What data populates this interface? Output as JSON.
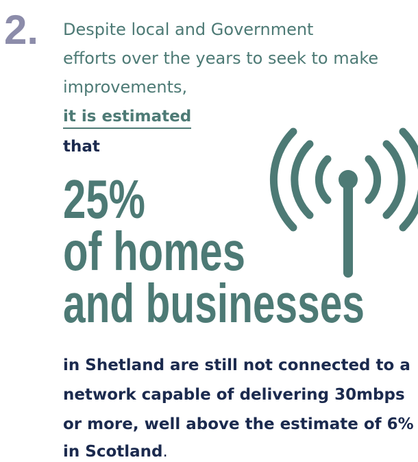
{
  "step_number": "2.",
  "intro_lines": [
    "Despite local and Government",
    "efforts over the years to seek to make",
    "improvements,"
  ],
  "link_text": "it is estimated",
  "connector": "that",
  "headline_lines": [
    "25%",
    "of homes",
    "and businesses"
  ],
  "body_lines": [
    "in Shetland are still not connected to a",
    "network capable of delivering 30mbps",
    "or more, well above the estimate of 6%",
    "in Scotland"
  ],
  "body_end": "."
}
